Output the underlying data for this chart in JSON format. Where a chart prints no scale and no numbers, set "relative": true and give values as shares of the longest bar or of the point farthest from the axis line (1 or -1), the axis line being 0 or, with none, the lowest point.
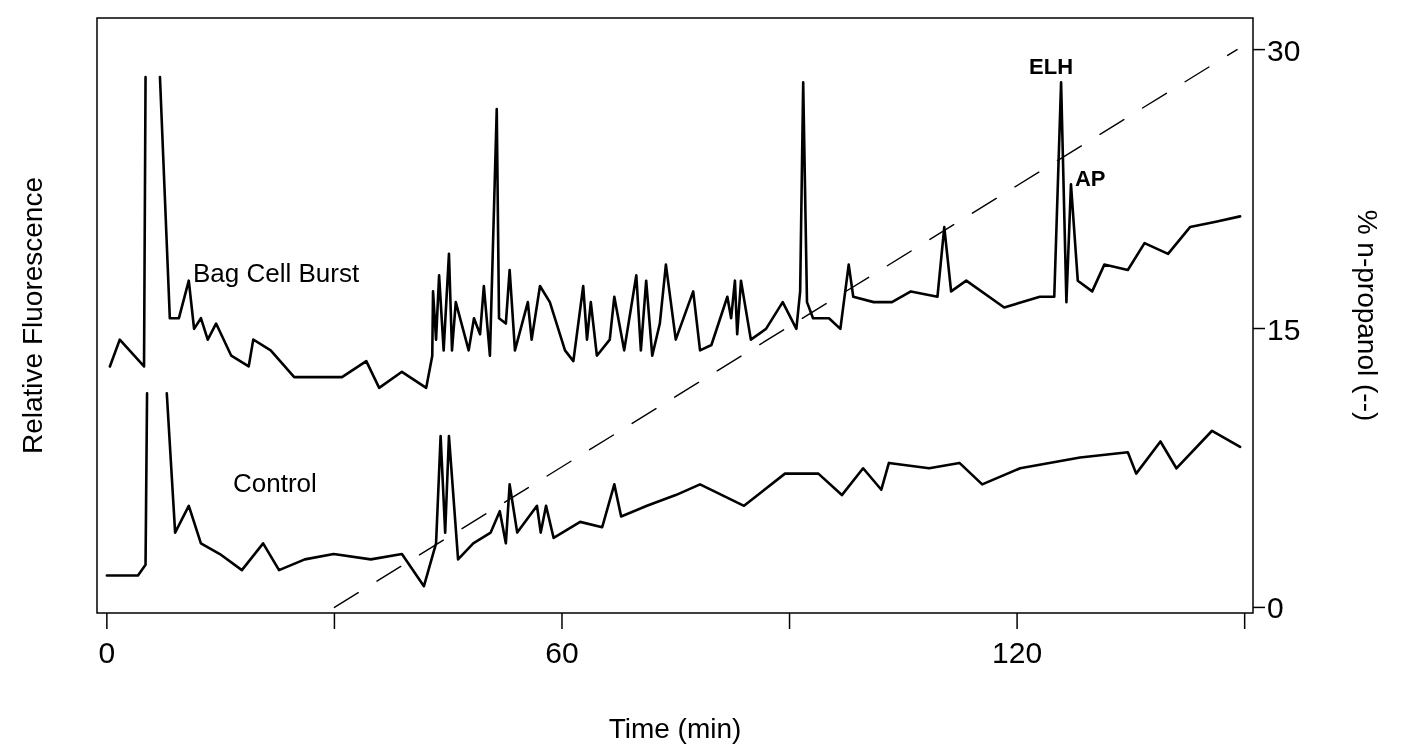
{
  "chart_data": [
    {
      "type": "line",
      "relative": true,
      "xlabel": "Time (min)",
      "ylabel": "Relative Fluorescence",
      "xlim": [
        -1.3,
        151.1
      ],
      "xticks": [
        0,
        {
          "value": 30,
          "label": null
        },
        60,
        {
          "value": 90,
          "label": null
        },
        120,
        {
          "value": 150,
          "label": null
        }
      ],
      "grid": false,
      "marker": "none",
      "annotations": [
        {
          "text": "ELH",
          "x": 125.8,
          "y": 0.99
        },
        {
          "text": "AP",
          "x": 127.1,
          "y": 0.8
        }
      ],
      "series": [
        {
          "name": "Bag Cell Burst",
          "color": "#000000",
          "x": [
            0.4,
            1.7,
            4.9,
            5.1,
            6.0,
            7.0,
            8.3,
            9.5,
            10.8,
            11.5,
            12.4,
            13.3,
            14.4,
            16.4,
            18.7,
            19.3,
            21.6,
            24.7,
            27.0,
            31.0,
            34.2,
            35.9,
            38.9,
            42.1,
            42.9,
            43.0,
            43.4,
            43.8,
            44.4,
            45.1,
            45.5,
            46.0,
            47.7,
            48.4,
            49.2,
            49.7,
            50.5,
            51.4,
            51.7,
            52.6,
            53.1,
            53.8,
            55.5,
            56.0,
            57.1,
            58.4,
            60.4,
            61.5,
            62.8,
            63.3,
            63.8,
            64.6,
            66.3,
            66.9,
            68.2,
            69.8,
            70.4,
            71.1,
            71.9,
            72.9,
            73.7,
            75.0,
            77.3,
            78.2,
            79.7,
            81.8,
            82.3,
            82.8,
            83.1,
            83.6,
            84.9,
            86.9,
            89.1,
            90.9,
            91.4,
            91.8,
            92.3,
            93.1,
            95.2,
            96.7,
            97.8,
            98.4,
            101.1,
            103.5,
            106.0,
            109.5,
            110.4,
            111.3,
            113.3,
            118.3,
            123.0,
            124.9,
            125.8,
            126.5,
            127.1,
            128.0,
            129.9,
            131.5,
            134.6,
            136.8,
            139.9,
            142.8,
            146.2,
            149.4
          ],
          "values": [
            0.46,
            0.51,
            0.46,
            1.0,
            null,
            1.0,
            0.55,
            0.55,
            0.62,
            0.53,
            0.55,
            0.51,
            0.54,
            0.48,
            0.46,
            0.51,
            0.49,
            0.44,
            0.44,
            0.44,
            0.47,
            0.42,
            0.45,
            0.42,
            0.48,
            0.6,
            0.51,
            0.63,
            0.49,
            0.67,
            0.49,
            0.58,
            0.49,
            0.55,
            0.52,
            0.61,
            0.48,
            0.94,
            0.55,
            0.54,
            0.64,
            0.49,
            0.58,
            0.51,
            0.61,
            0.58,
            0.49,
            0.47,
            0.61,
            0.51,
            0.58,
            0.48,
            0.51,
            0.59,
            0.49,
            0.63,
            0.49,
            0.62,
            0.48,
            0.54,
            0.65,
            0.51,
            0.6,
            0.49,
            0.5,
            0.59,
            0.55,
            0.62,
            0.52,
            0.62,
            0.51,
            0.53,
            0.58,
            0.53,
            0.6,
            0.99,
            0.58,
            0.55,
            0.55,
            0.53,
            0.65,
            0.59,
            0.58,
            0.58,
            0.6,
            0.59,
            0.72,
            0.6,
            0.62,
            0.57,
            0.59,
            0.59,
            0.99,
            0.58,
            0.8,
            0.62,
            0.6,
            0.65,
            0.64,
            0.69,
            0.67,
            0.72,
            0.73,
            0.74
          ]
        },
        {
          "name": "Control",
          "color": "#000000",
          "x": [
            0.0,
            4.1,
            5.1,
            5.3,
            6.6,
            7.9,
            9.0,
            10.8,
            12.4,
            14.9,
            17.8,
            20.6,
            22.7,
            26.1,
            29.9,
            34.8,
            38.9,
            41.8,
            43.4,
            44.0,
            44.6,
            45.1,
            46.3,
            48.3,
            50.6,
            51.8,
            52.6,
            53.1,
            54.1,
            56.7,
            57.2,
            57.9,
            58.9,
            62.4,
            65.3,
            66.9,
            67.8,
            71.2,
            75.0,
            78.2,
            84.0,
            89.4,
            93.8,
            96.9,
            99.7,
            102.1,
            103.1,
            108.4,
            112.4,
            115.4,
            120.4,
            128.3,
            134.6,
            135.7,
            138.9,
            141.0,
            145.7,
            149.4
          ],
          "values": [
            0.07,
            0.07,
            0.09,
            0.41,
            null,
            0.41,
            0.15,
            0.2,
            0.13,
            0.11,
            0.08,
            0.13,
            0.08,
            0.1,
            0.11,
            0.1,
            0.11,
            0.05,
            0.13,
            0.33,
            0.15,
            0.33,
            0.1,
            0.13,
            0.15,
            0.19,
            0.13,
            0.24,
            0.15,
            0.2,
            0.15,
            0.2,
            0.14,
            0.17,
            0.16,
            0.24,
            0.18,
            0.2,
            0.22,
            0.24,
            0.2,
            0.26,
            0.26,
            0.22,
            0.27,
            0.23,
            0.28,
            0.27,
            0.28,
            0.24,
            0.27,
            0.29,
            0.3,
            0.26,
            0.32,
            0.27,
            0.34,
            0.31
          ]
        }
      ]
    },
    {
      "type": "line",
      "y2label": "% n-propanol (--)",
      "xlim": [
        -1.3,
        151.1
      ],
      "y2lim": [
        -0.3,
        31.7
      ],
      "y2ticks": [
        0,
        15,
        30
      ],
      "tick_labels": "y",
      "series": [
        {
          "axis": "y2",
          "line_style": "dashed",
          "color": "#000000",
          "x": [
            30,
            149
          ],
          "values": [
            0,
            30
          ]
        }
      ]
    }
  ]
}
